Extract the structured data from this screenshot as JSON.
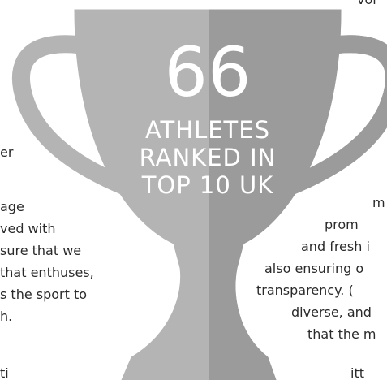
{
  "top_text": "vol",
  "left_text": [
    "er",
    "age",
    "ved with",
    "sure that we",
    "that enthuses,",
    "s the sport to",
    "h.",
    "ti"
  ],
  "right_text": [
    "m",
    "prom",
    "and fresh i",
    "also ensuring o",
    "transparency. (",
    "diverse, and",
    "that the m",
    "itt"
  ],
  "trophy": {
    "number": "66",
    "lines": [
      "ATHLETES",
      "RANKED IN",
      "TOP 10 UK"
    ]
  }
}
